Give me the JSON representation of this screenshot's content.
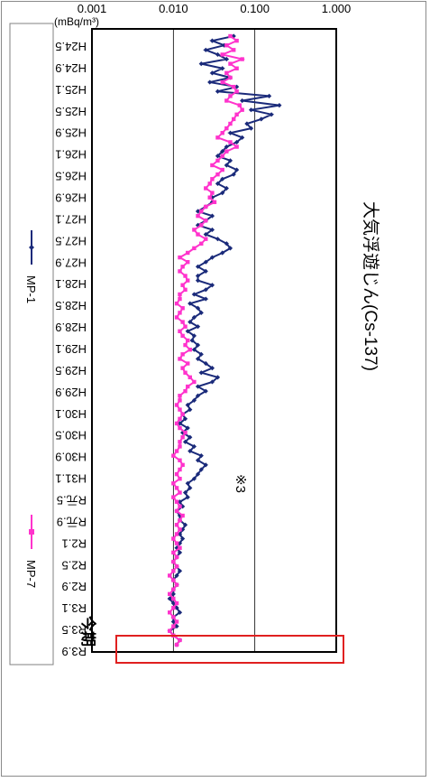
{
  "chart_data": {
    "type": "line",
    "title": "大気浮遊じん(Cs-137)",
    "ylabel": "(mBq/m³)",
    "y_scale": "log",
    "ylim": [
      0.001,
      1.0
    ],
    "yticks": [
      "1.000",
      "0.100",
      "0.010",
      "0.001"
    ],
    "x_ticks": [
      "H24.5",
      "H24.9",
      "H25.1",
      "H25.5",
      "H25.9",
      "H26.1",
      "H26.5",
      "H26.9",
      "H27.1",
      "H27.5",
      "H27.9",
      "H28.1",
      "H28.5",
      "H28.9",
      "H29.1",
      "H29.5",
      "H29.9",
      "H30.1",
      "H30.5",
      "H30.9",
      "H31.1",
      "R元.5",
      "R元.9",
      "R2.1",
      "R2.5",
      "R2.9",
      "R3.1",
      "R3.5",
      "R3.9"
    ],
    "legend_position": "bottom",
    "annotations": {
      "note": "※3",
      "current": "今期"
    },
    "grid": true,
    "series": [
      {
        "name": "MP-1",
        "color": "#1a2a7a",
        "marker": "diamond",
        "values": [
          0.055,
          0.03,
          0.042,
          0.025,
          0.035,
          0.045,
          0.022,
          0.04,
          0.03,
          0.05,
          0.028,
          0.06,
          0.035,
          0.15,
          0.07,
          0.2,
          0.09,
          0.16,
          0.12,
          0.08,
          0.09,
          0.05,
          0.07,
          0.06,
          0.045,
          0.04,
          0.035,
          0.05,
          0.045,
          0.06,
          0.055,
          0.04,
          0.035,
          0.045,
          0.04,
          0.03,
          0.03,
          0.025,
          0.02,
          0.03,
          0.025,
          0.02,
          0.03,
          0.025,
          0.035,
          0.045,
          0.05,
          0.04,
          0.03,
          0.025,
          0.02,
          0.025,
          0.02,
          0.02,
          0.03,
          0.025,
          0.018,
          0.025,
          0.016,
          0.02,
          0.022,
          0.018,
          0.016,
          0.02,
          0.015,
          0.018,
          0.017,
          0.02,
          0.018,
          0.022,
          0.02,
          0.025,
          0.03,
          0.022,
          0.035,
          0.03,
          0.02,
          0.025,
          0.02,
          0.018,
          0.015,
          0.016,
          0.013,
          0.014,
          0.012,
          0.015,
          0.013,
          0.016,
          0.014,
          0.018,
          0.016,
          0.022,
          0.02,
          0.025,
          0.022,
          0.02,
          0.018,
          0.015,
          0.016,
          0.014,
          0.015,
          0.012,
          0.013,
          0.011,
          0.012,
          0.012,
          0.014,
          0.013,
          0.012,
          0.013,
          0.012,
          0.011,
          0.012,
          0.011,
          0.01,
          0.011,
          0.012,
          0.011,
          0.01,
          0.011,
          0.01,
          0.01,
          0.009,
          0.01,
          0.011,
          0.012,
          0.01,
          0.01,
          0.011,
          0.009,
          0.01,
          0.012,
          0.011
        ]
      },
      {
        "name": "MP-7",
        "color": "#ff33cc",
        "marker": "square",
        "values": [
          0.05,
          0.06,
          0.045,
          0.055,
          0.04,
          0.07,
          0.05,
          0.06,
          0.045,
          0.05,
          0.04,
          0.055,
          0.06,
          0.05,
          0.045,
          0.065,
          0.07,
          0.06,
          0.055,
          0.05,
          0.045,
          0.04,
          0.035,
          0.05,
          0.06,
          0.045,
          0.04,
          0.035,
          0.03,
          0.04,
          0.035,
          0.03,
          0.028,
          0.025,
          0.03,
          0.028,
          0.032,
          0.025,
          0.022,
          0.02,
          0.025,
          0.022,
          0.018,
          0.02,
          0.025,
          0.022,
          0.018,
          0.015,
          0.012,
          0.015,
          0.013,
          0.012,
          0.014,
          0.015,
          0.013,
          0.014,
          0.012,
          0.012,
          0.011,
          0.013,
          0.012,
          0.011,
          0.013,
          0.014,
          0.012,
          0.013,
          0.015,
          0.014,
          0.016,
          0.013,
          0.012,
          0.015,
          0.013,
          0.014,
          0.016,
          0.018,
          0.015,
          0.014,
          0.012,
          0.012,
          0.011,
          0.012,
          0.013,
          0.012,
          0.011,
          0.012,
          0.014,
          0.013,
          0.012,
          0.012,
          0.011,
          0.01,
          0.012,
          0.013,
          0.012,
          0.011,
          0.012,
          0.01,
          0.011,
          0.012,
          0.01,
          0.011,
          0.012,
          0.011,
          0.013,
          0.012,
          0.011,
          0.012,
          0.011,
          0.01,
          0.011,
          0.012,
          0.01,
          0.011,
          0.01,
          0.011,
          0.01,
          0.009,
          0.01,
          0.011,
          0.01,
          0.009,
          0.01,
          0.011,
          0.01,
          0.009,
          0.01,
          0.011,
          0.01,
          0.009,
          0.01,
          0.012,
          0.011
        ]
      }
    ]
  }
}
